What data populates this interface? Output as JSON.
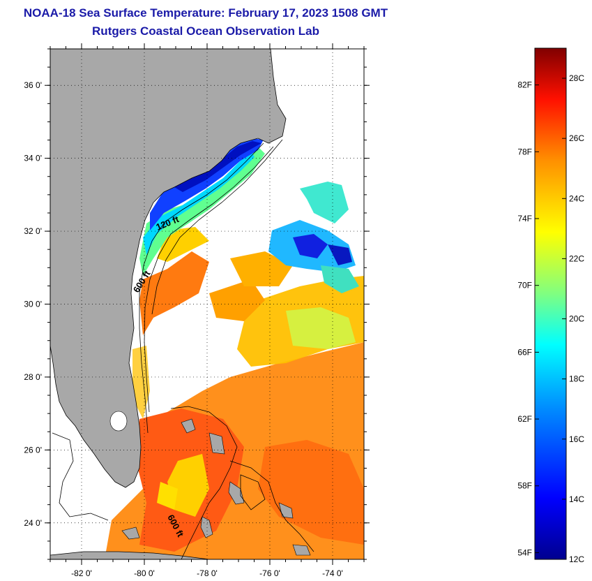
{
  "title": "NOAA-18 Sea Surface Temperature:  February 17, 2023 1508 GMT",
  "subtitle": "Rutgers Coastal Ocean Observation Lab",
  "map": {
    "lat_ticks": [
      {
        "value": 36,
        "label": "36 0'"
      },
      {
        "value": 34,
        "label": "34 0'"
      },
      {
        "value": 32,
        "label": "32 0'"
      },
      {
        "value": 30,
        "label": "30 0'"
      },
      {
        "value": 28,
        "label": "28 0'"
      },
      {
        "value": 26,
        "label": "26 0'"
      },
      {
        "value": 24,
        "label": "24 0'"
      }
    ],
    "lon_ticks": [
      {
        "value": -82,
        "label": "-82 0'"
      },
      {
        "value": -80,
        "label": "-80 0'"
      },
      {
        "value": -78,
        "label": "-78 0'"
      },
      {
        "value": -76,
        "label": "-76 0'"
      },
      {
        "value": -74,
        "label": "-74 0'"
      }
    ],
    "lat_range": [
      23,
      37
    ],
    "lon_range": [
      -83,
      -73
    ],
    "contour_labels": [
      "120 ft",
      "600 ft",
      "600 ft"
    ],
    "land_color": "#a8a8a8",
    "grid": "dotted"
  },
  "colorbar": {
    "fahrenheit_labels": [
      "82F",
      "78F",
      "74F",
      "70F",
      "66F",
      "62F",
      "58F",
      "54F"
    ],
    "celsius_labels": [
      "28C",
      "26C",
      "24C",
      "22C",
      "20C",
      "18C",
      "16C",
      "14C",
      "12C"
    ],
    "range_c": [
      12,
      29
    ],
    "colors": [
      "#00008f",
      "#0000ff",
      "#0080ff",
      "#00ffff",
      "#80ff80",
      "#ffff00",
      "#ff8000",
      "#ff0000",
      "#800000"
    ]
  }
}
